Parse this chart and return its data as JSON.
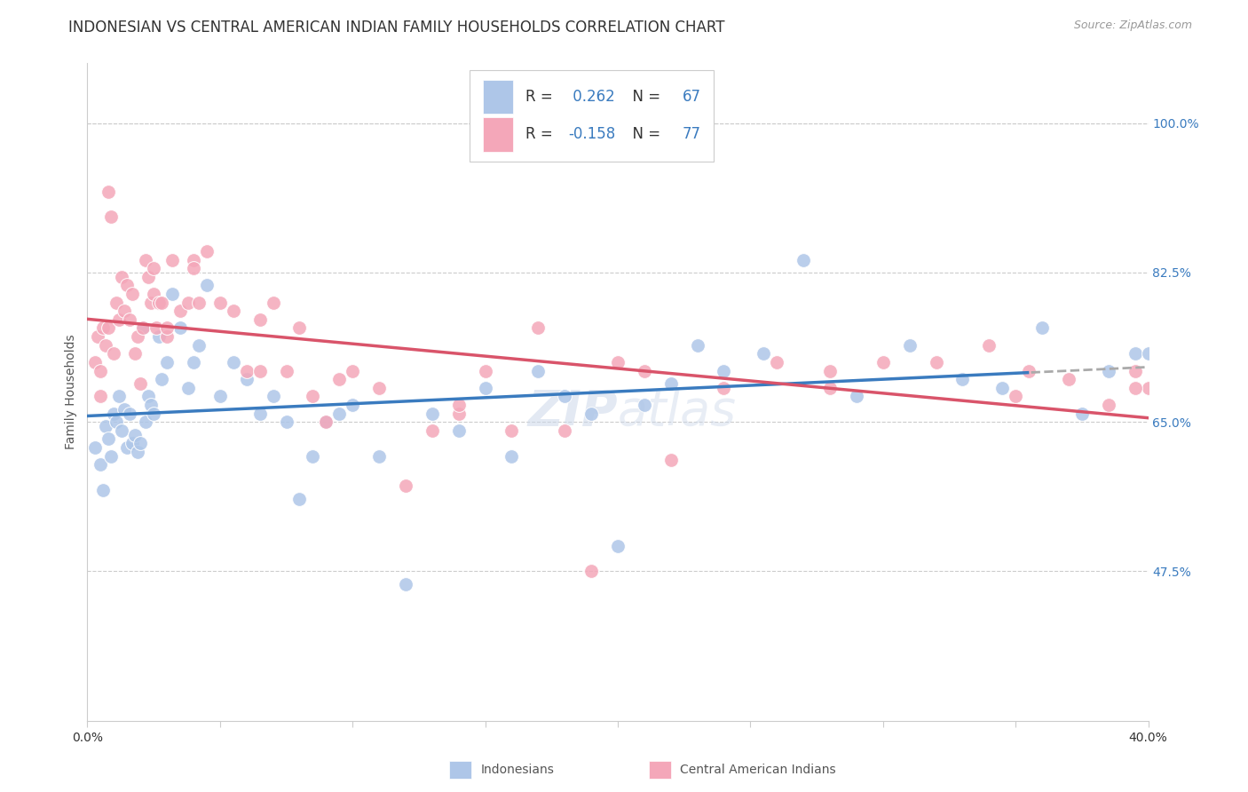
{
  "title": "INDONESIAN VS CENTRAL AMERICAN INDIAN FAMILY HOUSEHOLDS CORRELATION CHART",
  "source": "Source: ZipAtlas.com",
  "ylabel": "Family Households",
  "ytick_labels": [
    "100.0%",
    "82.5%",
    "65.0%",
    "47.5%"
  ],
  "ytick_values": [
    1.0,
    0.825,
    0.65,
    0.475
  ],
  "xlim": [
    0.0,
    0.4
  ],
  "ylim": [
    0.3,
    1.07
  ],
  "r_indonesian": 0.262,
  "n_indonesian": 67,
  "r_central_american": -0.158,
  "n_central_american": 77,
  "color_indonesian": "#aec6e8",
  "color_central_american": "#f4a7b9",
  "line_color_indonesian": "#3a7bbf",
  "line_color_central_american": "#d9546a",
  "line_color_extension": "#aaaaaa",
  "background_color": "#ffffff",
  "grid_color": "#cccccc",
  "watermark": "ZIPAtlas",
  "title_fontsize": 12,
  "legend_fontsize": 12,
  "legend_value_color": "#3a7bbf",
  "legend_label_color": "#333333",
  "right_axis_color": "#3a7bbf",
  "source_color": "#999999"
}
